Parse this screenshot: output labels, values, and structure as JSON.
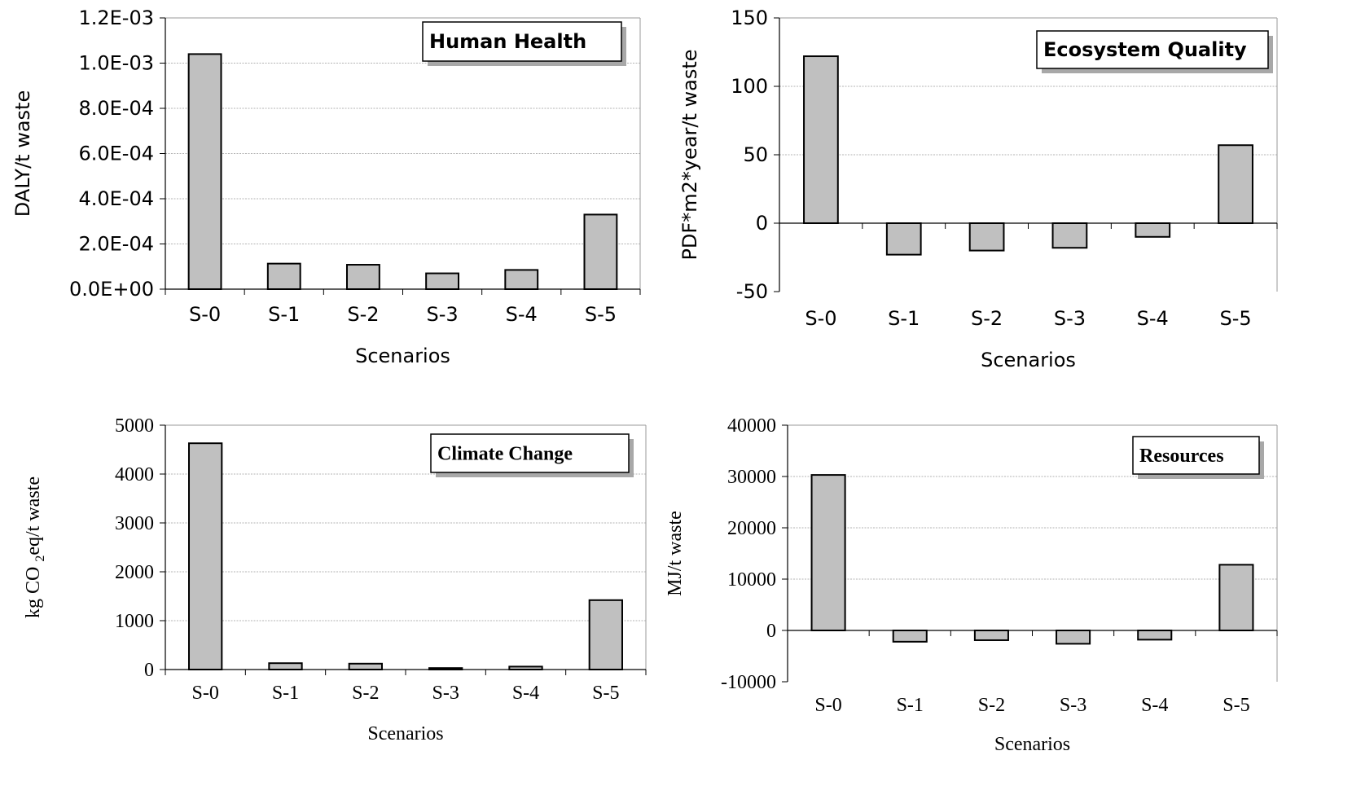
{
  "chart_data": [
    {
      "type": "bar",
      "title": "Human Health",
      "xlabel": "Scenarios",
      "ylabel": "DALY/t waste",
      "categories": [
        "S-0",
        "S-1",
        "S-2",
        "S-3",
        "S-4",
        "S-5"
      ],
      "values": [
        0.00104,
        0.000113,
        0.000108,
        7e-05,
        8.5e-05,
        0.00033
      ],
      "ylim": [
        0,
        0.0012
      ],
      "yticks": [
        "0.0E+00",
        "2.0E-04",
        "4.0E-04",
        "6.0E-04",
        "8.0E-04",
        "1.0E-03",
        "1.2E-03"
      ],
      "grid": true,
      "bar_color": "#c0c0c0"
    },
    {
      "type": "bar",
      "title": "Ecosystem Quality",
      "xlabel": "Scenarios",
      "ylabel": "PDF*m2*year/t waste",
      "categories": [
        "S-0",
        "S-1",
        "S-2",
        "S-3",
        "S-4",
        "S-5"
      ],
      "values": [
        122,
        -23,
        -20,
        -18,
        -10,
        57
      ],
      "ylim": [
        -50,
        150
      ],
      "yticks": [
        "-50",
        "0",
        "50",
        "100",
        "150"
      ],
      "grid": true,
      "bar_color": "#c0c0c0"
    },
    {
      "type": "bar",
      "title": "Climate Change",
      "xlabel": "Scenarios",
      "ylabel": "kg CO",
      "ylabel_sub": "2",
      "ylabel_rest": "eq/t waste",
      "categories": [
        "S-0",
        "S-1",
        "S-2",
        "S-3",
        "S-4",
        "S-5"
      ],
      "values": [
        4630,
        130,
        120,
        30,
        60,
        1420
      ],
      "ylim": [
        0,
        5000
      ],
      "yticks": [
        "0",
        "1000",
        "2000",
        "3000",
        "4000",
        "5000"
      ],
      "grid": true,
      "bar_color": "#c0c0c0"
    },
    {
      "type": "bar",
      "title": "Resources",
      "xlabel": "Scenarios",
      "ylabel": "MJ/t waste",
      "categories": [
        "S-0",
        "S-1",
        "S-2",
        "S-3",
        "S-4",
        "S-5"
      ],
      "values": [
        30300,
        -2200,
        -1900,
        -2600,
        -1800,
        12800
      ],
      "ylim": [
        -10000,
        40000
      ],
      "yticks": [
        "-10000",
        "0",
        "10000",
        "20000",
        "30000",
        "40000"
      ],
      "grid": true,
      "bar_color": "#c0c0c0"
    }
  ]
}
